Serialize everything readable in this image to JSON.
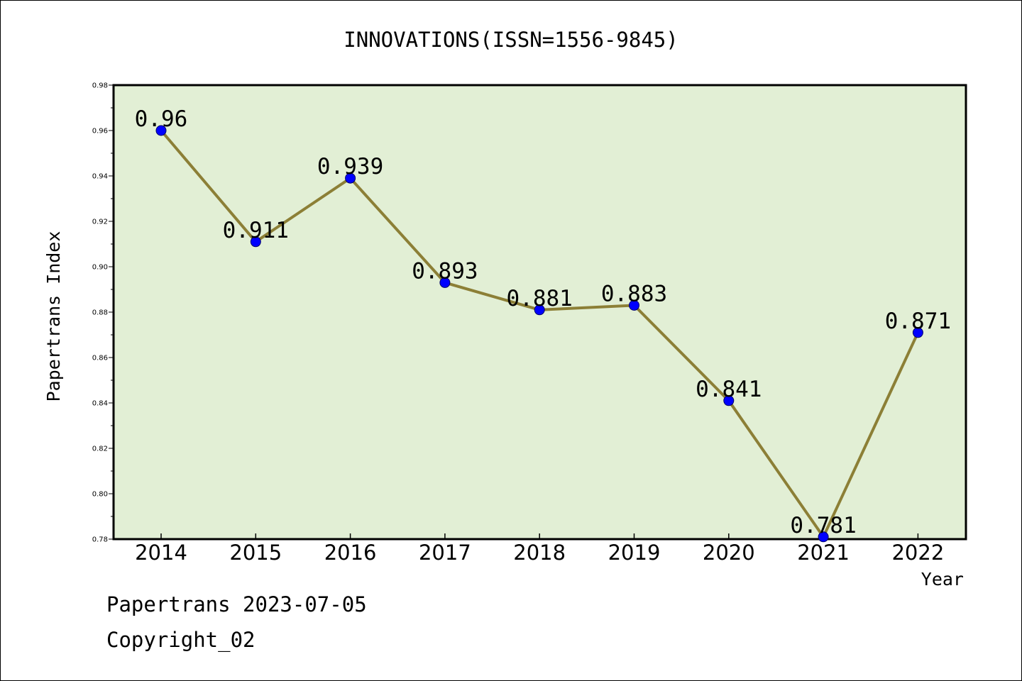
{
  "chart_data": {
    "type": "line",
    "title": "INNOVATIONS(ISSN=1556-9845)",
    "xlabel": "Year",
    "ylabel": "Papertrans Index",
    "categories": [
      "2014",
      "2015",
      "2016",
      "2017",
      "2018",
      "2019",
      "2020",
      "2021",
      "2022"
    ],
    "values": [
      0.96,
      0.911,
      0.939,
      0.893,
      0.881,
      0.883,
      0.841,
      0.781,
      0.871
    ],
    "data_labels": [
      "0.96",
      "0.911",
      "0.939",
      "0.893",
      "0.881",
      "0.883",
      "0.841",
      "0.781",
      "0.871"
    ],
    "ylim": [
      0.78,
      0.98
    ],
    "yticks": [
      "0.78",
      "0.80",
      "0.82",
      "0.84",
      "0.86",
      "0.88",
      "0.90",
      "0.92",
      "0.94",
      "0.96",
      "0.98"
    ],
    "grid": false,
    "colors": {
      "plot_background": "#e2efd5",
      "line": "#8c7f36",
      "marker": "#0000ff"
    }
  },
  "footer": {
    "line1": "Papertrans 2023-07-05",
    "line2": "Copyright_02"
  }
}
